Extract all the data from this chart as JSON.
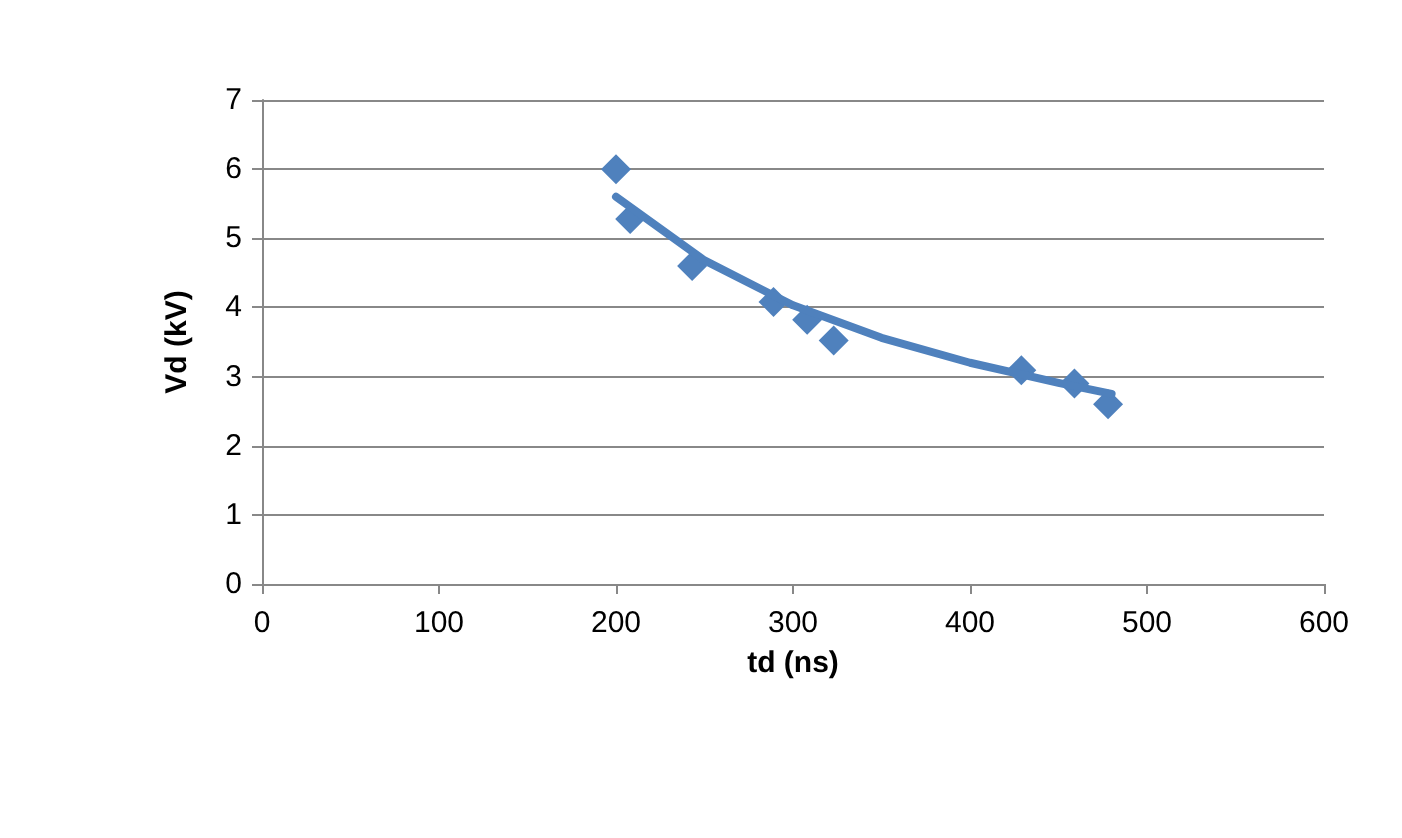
{
  "chart_data": {
    "type": "scatter",
    "xlabel": "td (ns)",
    "ylabel": "Vd (kV)",
    "xlim": [
      0,
      600
    ],
    "xticks": [
      0,
      100,
      200,
      300,
      400,
      500,
      600
    ],
    "ylim": [
      0,
      7
    ],
    "yticks": [
      0,
      1,
      2,
      3,
      4,
      5,
      6,
      7
    ],
    "grid": "y",
    "marker": "diamond",
    "series": [
      {
        "color": "#4f81bd",
        "x": [
          200,
          208,
          243,
          289,
          308,
          323,
          429,
          459,
          478
        ],
        "values": [
          6.0,
          5.28,
          4.6,
          4.08,
          3.82,
          3.52,
          3.09,
          2.9,
          2.6
        ]
      },
      {
        "type": "line",
        "color": "#4f81bd",
        "marker": "none",
        "line_style": "solid",
        "x": [
          200,
          250,
          300,
          350,
          400,
          450,
          480
        ],
        "values": [
          5.6,
          4.68,
          4.03,
          3.56,
          3.2,
          2.91,
          2.75
        ]
      }
    ]
  }
}
